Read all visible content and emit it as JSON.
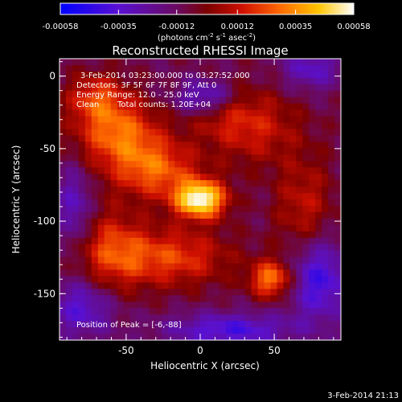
{
  "chart_data": {
    "type": "heatmap",
    "title": "Reconstructed RHESSI Image",
    "xlabel": "Heliocentric X (arcsec)",
    "ylabel": "Heliocentric Y (arcsec)",
    "xlim": [
      -95,
      95
    ],
    "ylim": [
      -182,
      12
    ],
    "xticks": [
      -50,
      0,
      50
    ],
    "yticks": [
      0,
      -50,
      -100,
      -150
    ],
    "colorbar": {
      "min": -0.00058,
      "max": 0.00058,
      "ticks": [
        "-0.00058",
        "-0.00035",
        "-0.00012",
        "0.00012",
        "0.00035",
        "0.00058"
      ],
      "unit_text": "(photons cm",
      "unit_sup1": "-2",
      "unit_mid": " s",
      "unit_sup2": "-1",
      "unit_mid2": " asec",
      "unit_sup3": "-2",
      "unit_end": ")"
    },
    "annotations": {
      "time_range": "3-Feb-2014 03:23:00.000 to 03:27:52.000",
      "detectors": "Detectors: 3F 5F 6F 7F 8F 9F, Att 0",
      "energy": "Energy Range: 12.0 - 25.0 keV",
      "method": "Clean",
      "counts": "Total counts: 1.20E+04",
      "peak": "Position of Peak = [-6,-88]"
    },
    "peak": {
      "x": -6,
      "y": -88
    },
    "sources": [
      {
        "x": 0,
        "y": -85,
        "sx": 12,
        "sy": 9,
        "amp": 1.0
      },
      {
        "x": -55,
        "y": -40,
        "sx": 20,
        "sy": 16,
        "amp": 0.55
      },
      {
        "x": -70,
        "y": -15,
        "sx": 14,
        "sy": 12,
        "amp": 0.4
      },
      {
        "x": 48,
        "y": -140,
        "sx": 10,
        "sy": 9,
        "amp": 0.6
      },
      {
        "x": 35,
        "y": -35,
        "sx": 22,
        "sy": 18,
        "amp": 0.35
      },
      {
        "x": -20,
        "y": -125,
        "sx": 28,
        "sy": 14,
        "amp": 0.45
      },
      {
        "x": -60,
        "y": -120,
        "sx": 16,
        "sy": 20,
        "amp": 0.38
      },
      {
        "x": 70,
        "y": -90,
        "sx": 14,
        "sy": 25,
        "amp": 0.3
      },
      {
        "x": 10,
        "y": -20,
        "sx": 15,
        "sy": 12,
        "amp": 0.28
      },
      {
        "x": -30,
        "y": -65,
        "sx": 20,
        "sy": 14,
        "amp": 0.5
      }
    ],
    "negative_regions": [
      {
        "x": 5,
        "y": -15,
        "sx": 14,
        "sy": 9,
        "amp": 0.6
      },
      {
        "x": 80,
        "y": -140,
        "sx": 14,
        "sy": 20,
        "amp": 0.5
      },
      {
        "x": -80,
        "y": -160,
        "sx": 15,
        "sy": 14,
        "amp": 0.4
      },
      {
        "x": -85,
        "y": -90,
        "sx": 8,
        "sy": 20,
        "amp": 0.35
      },
      {
        "x": 20,
        "y": -175,
        "sx": 30,
        "sy": 8,
        "amp": 0.45
      },
      {
        "x": 75,
        "y": 5,
        "sx": 14,
        "sy": 10,
        "amp": 0.35
      }
    ]
  },
  "footer": {
    "date": "3-Feb-2014 21:13"
  }
}
